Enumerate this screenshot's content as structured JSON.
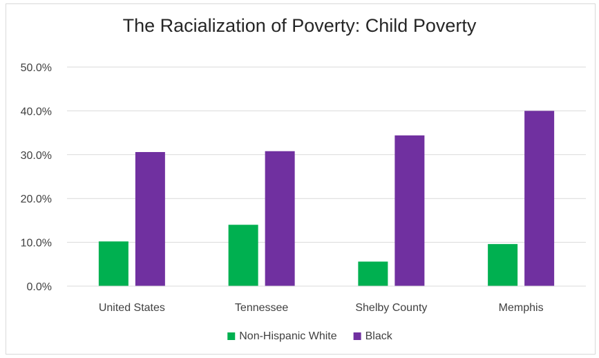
{
  "chart_data": {
    "type": "bar",
    "title": "The Racialization of Poverty: Child Poverty",
    "categories": [
      "United States",
      "Tennessee",
      "Shelby County",
      "Memphis"
    ],
    "series": [
      {
        "name": "Non-Hispanic White",
        "color": "#00b050",
        "values": [
          10.2,
          14.0,
          5.6,
          9.6
        ]
      },
      {
        "name": "Black",
        "color": "#7030a0",
        "values": [
          30.6,
          30.8,
          34.4,
          40.0
        ]
      }
    ],
    "ylim": [
      0,
      50
    ],
    "yticks": [
      "0.0%",
      "10.0%",
      "20.0%",
      "30.0%",
      "40.0%",
      "50.0%"
    ],
    "grid": true,
    "legend": "bottom"
  }
}
